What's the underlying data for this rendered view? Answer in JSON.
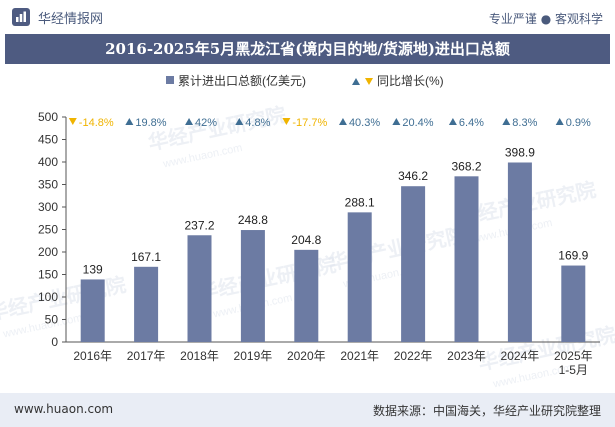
{
  "header": {
    "brand_name": "华经情报网",
    "slogan": "专业严谨 ● 客观科学",
    "title": "2016-2025年5月黑龙江省(境内目的地/货源地)进出口总额"
  },
  "footer": {
    "url": "www.huaon.com",
    "source": "数据来源：中国海关，华经产业研究院整理"
  },
  "watermark": {
    "line1": "华经产业研究院",
    "line2": "www.huaon.com"
  },
  "colors": {
    "bar": "#6c7ba3",
    "header_bg": "#4e5b81",
    "down": "#f0b400",
    "up": "#3f6e93",
    "footer_bg": "#e9edf5"
  },
  "chart_data": {
    "type": "bar",
    "legend": {
      "bar_label": "累计进出口总额(亿美元)",
      "growth_label": "同比增长(%)",
      "placement": "top"
    },
    "categories": [
      "2016年",
      "2017年",
      "2018年",
      "2019年",
      "2020年",
      "2021年",
      "2022年",
      "2023年",
      "2024年",
      "2025年\n1-5月"
    ],
    "values": [
      139,
      167.1,
      237.2,
      248.8,
      204.8,
      288.1,
      346.2,
      368.2,
      398.9,
      169.9
    ],
    "value_labels": [
      "139",
      "167.1",
      "237.2",
      "248.8",
      "204.8",
      "288.1",
      "346.2",
      "368.2",
      "398.9",
      "169.9"
    ],
    "growth": [
      -14.8,
      19.8,
      42,
      4.8,
      -17.7,
      40.3,
      20.4,
      6.4,
      8.3,
      0.9
    ],
    "growth_labels": [
      "-14.8%",
      "19.8%",
      "42%",
      "4.8%",
      "-17.7%",
      "40.3%",
      "20.4%",
      "6.4%",
      "8.3%",
      "0.9%"
    ],
    "ylim": [
      0,
      500
    ],
    "yticks": [
      "0",
      "50",
      "100",
      "150",
      "200",
      "250",
      "300",
      "350",
      "400",
      "450",
      "500"
    ],
    "grid": false
  }
}
